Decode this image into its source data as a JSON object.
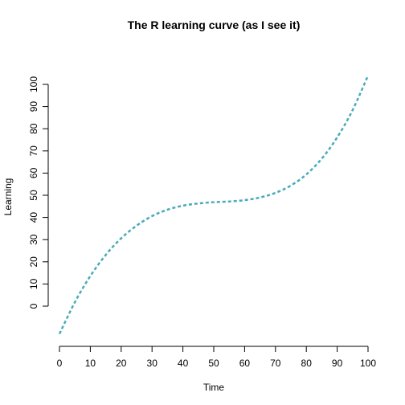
{
  "chart_data": {
    "type": "line",
    "title": "The R learning curve (as I see it)",
    "xlabel": "Time",
    "ylabel": "Learning",
    "xlim": [
      0,
      100
    ],
    "ylim": [
      0,
      100
    ],
    "xticks": [
      0,
      10,
      20,
      30,
      40,
      50,
      60,
      70,
      80,
      90,
      100
    ],
    "yticks": [
      0,
      10,
      20,
      30,
      40,
      50,
      60,
      70,
      80,
      90,
      100
    ],
    "grid": false,
    "series": [
      {
        "color": "#4aabb8",
        "line_style": "dashed",
        "x": [
          0,
          5,
          10,
          15,
          20,
          25,
          30,
          35,
          40,
          45,
          50,
          55,
          60,
          65,
          70,
          75,
          80,
          85,
          90,
          95,
          100
        ],
        "y": [
          -12.5,
          1.8,
          13.6,
          23.1,
          30.6,
          36.3,
          40.6,
          43.5,
          45.3,
          46.3,
          46.9,
          47.2,
          47.8,
          49.0,
          51.1,
          54.4,
          59.4,
          66.5,
          76.1,
          88.4,
          104.0
        ]
      }
    ]
  }
}
